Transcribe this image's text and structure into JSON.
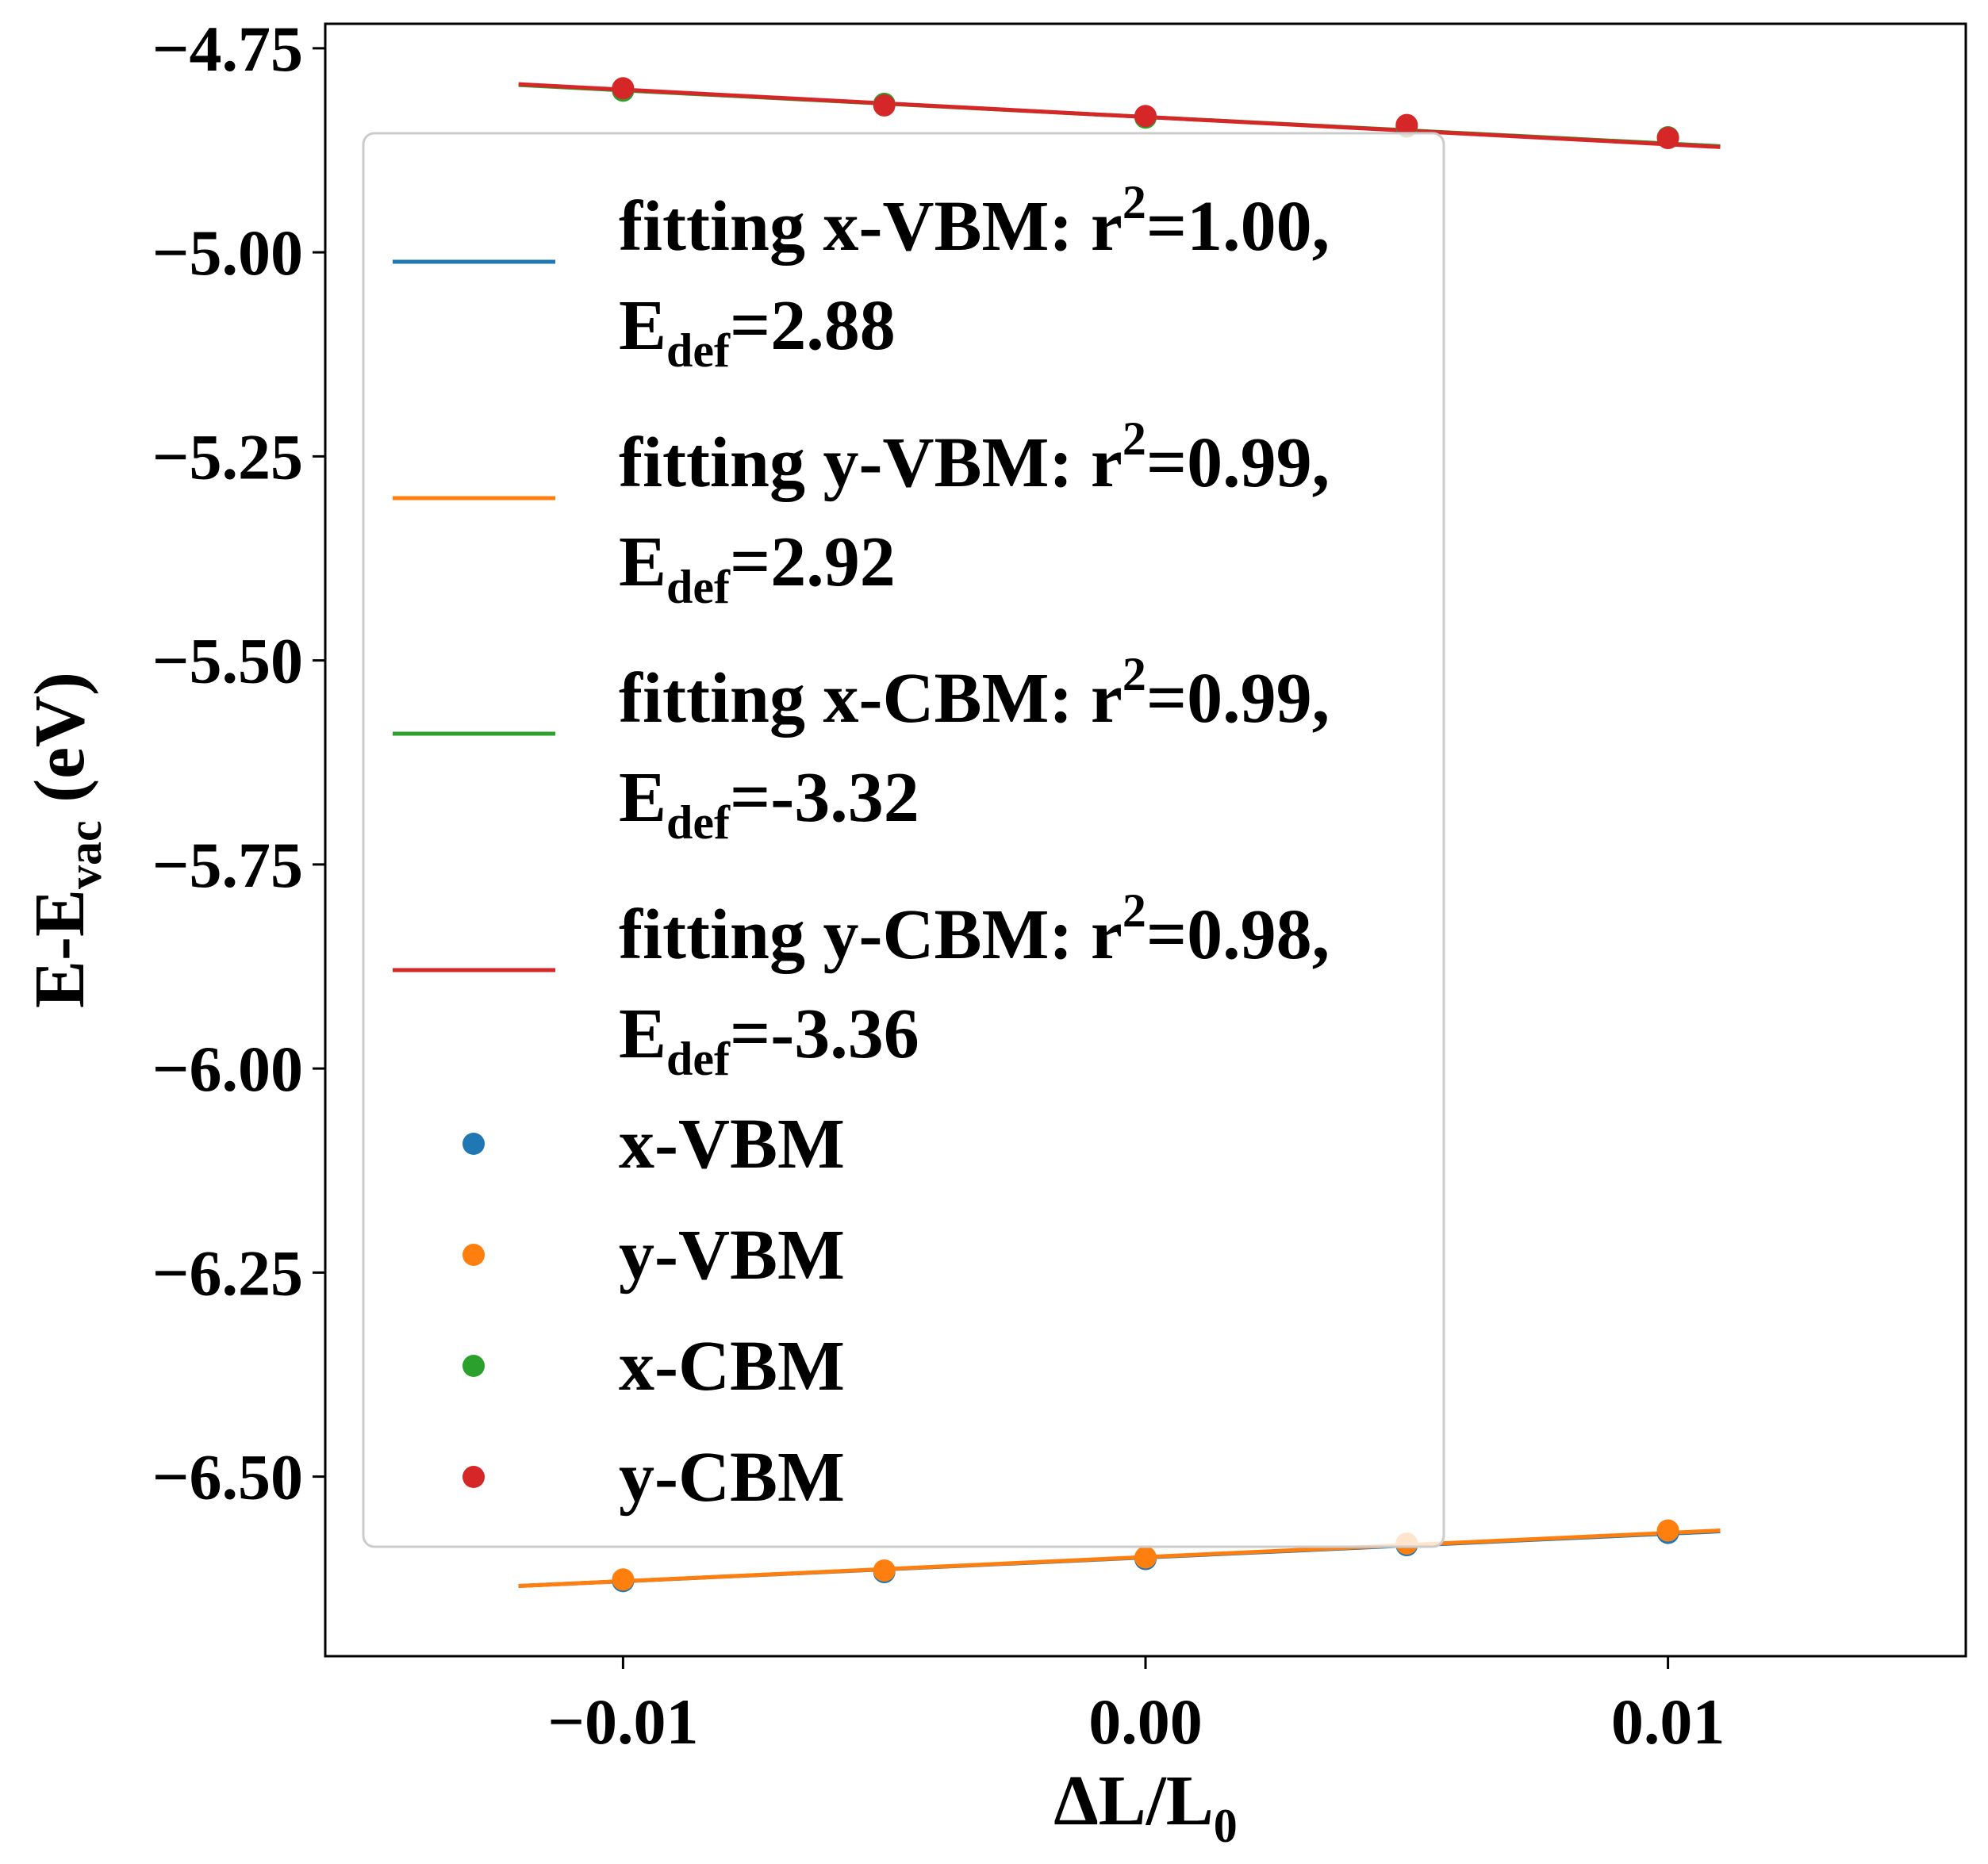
{
  "chart_data": {
    "type": "scatter",
    "xlabel": "ΔL/L",
    "xlabel_sub": "0",
    "ylabel": "E-E",
    "ylabel_sub": "vac",
    "ylabel_unit": " (eV)",
    "xlim": [
      -0.0157,
      0.0157
    ],
    "ylim": [
      -6.72,
      -4.72
    ],
    "x_ticks": [
      -0.01,
      0.0,
      0.01
    ],
    "x_tick_labels": [
      "−0.01",
      "0.00",
      "0.01"
    ],
    "y_ticks": [
      -4.75,
      -5.0,
      -5.25,
      -5.5,
      -5.75,
      -6.0,
      -6.25,
      -6.5
    ],
    "y_tick_labels": [
      "−4.75",
      "−5.00",
      "−5.25",
      "−5.50",
      "−5.75",
      "−6.00",
      "−6.25",
      "−6.50"
    ],
    "grid": false,
    "legend_position": "upper-left",
    "x": [
      -0.01,
      -0.005,
      0.0,
      0.005,
      0.01
    ],
    "series": [
      {
        "name": "x-VBM",
        "color": "#1f77b4",
        "values": [
          -6.628,
          -6.617,
          -6.601,
          -6.584,
          -6.569
        ]
      },
      {
        "name": "y-VBM",
        "color": "#ff7f0e",
        "values": [
          -6.626,
          -6.615,
          -6.599,
          -6.582,
          -6.566
        ]
      },
      {
        "name": "x-CBM",
        "color": "#2ca02c",
        "values": [
          -4.802,
          -4.818,
          -4.835,
          -4.846,
          -4.859
        ]
      },
      {
        "name": "y-CBM",
        "color": "#d62728",
        "values": [
          -4.799,
          -4.82,
          -4.833,
          -4.844,
          -4.86
        ]
      }
    ],
    "fits": [
      {
        "series": "x-VBM",
        "color": "#1f77b4",
        "x_range": [
          -0.012,
          0.011
        ],
        "y_range": [
          -6.634,
          -6.567
        ],
        "label_main": "fitting x-VBM: r",
        "label_sup": "2",
        "label_tail": "=1.00,",
        "label_e": "E",
        "label_e_sub": "def",
        "label_val": "=2.88"
      },
      {
        "series": "y-VBM",
        "color": "#ff7f0e",
        "values_note": "",
        "x_range": [
          -0.012,
          0.011
        ],
        "y_range": [
          -6.634,
          -6.566
        ],
        "label_main": "fitting y-VBM: r",
        "label_sup": "2",
        "label_tail": "=0.99,",
        "label_e": "E",
        "label_e_sub": "def",
        "label_val": "=2.92"
      },
      {
        "series": "x-CBM",
        "color": "#2ca02c",
        "x_range": [
          -0.012,
          0.011
        ],
        "y_range": [
          -4.795,
          -4.87
        ],
        "label_main": "fitting x-CBM: r",
        "label_sup": "2",
        "label_tail": "=0.99,",
        "label_e": "E",
        "label_e_sub": "def",
        "label_val": "=-3.32"
      },
      {
        "series": "y-CBM",
        "color": "#d62728",
        "x_range": [
          -0.012,
          0.011
        ],
        "y_range": [
          -4.794,
          -4.871
        ],
        "label_main": "fitting y-CBM: r",
        "label_sup": "2",
        "label_tail": "=0.98,",
        "label_e": "E",
        "label_e_sub": "def",
        "label_val": "=-3.36"
      }
    ]
  }
}
